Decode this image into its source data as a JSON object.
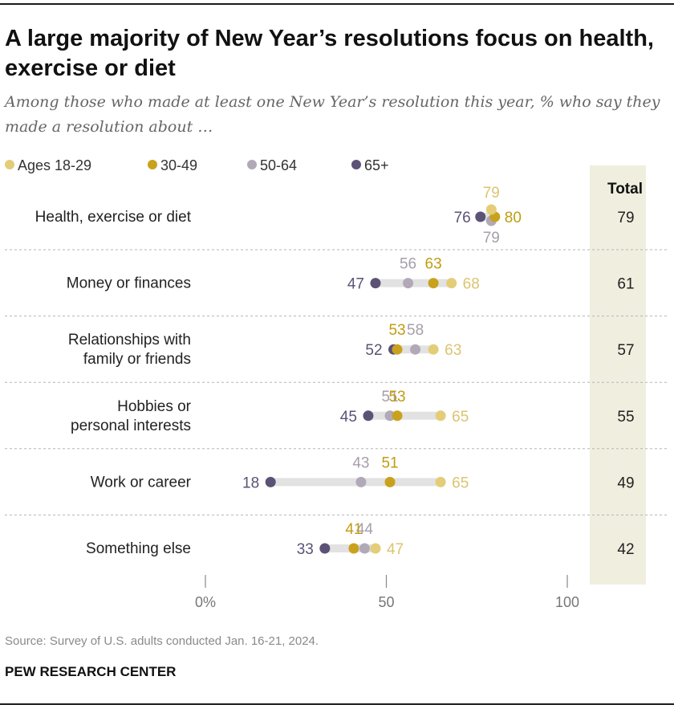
{
  "header": {
    "title": "A large majority of New Year’s resolutions focus on health, exercise or diet",
    "subtitle": "Among those who made at least one New Year’s resolution this year, % who say they made a resolution about …"
  },
  "legend": {
    "items": [
      {
        "label": "Ages 18-29",
        "color": "#e3cd78"
      },
      {
        "label": "30-49",
        "color": "#c9a21d"
      },
      {
        "label": "50-64",
        "color": "#b2a9b8"
      },
      {
        "label": "65+",
        "color": "#5c5275"
      }
    ]
  },
  "chart_data": {
    "type": "dot",
    "title": "A large majority of New Year’s resolutions focus on health, exercise or diet",
    "xlim": [
      0,
      100
    ],
    "x_ticks": [
      "0%",
      "50",
      "100"
    ],
    "total_header": "Total",
    "categories": [
      [
        "Health, exercise or diet"
      ],
      [
        "Money or finances"
      ],
      [
        "Relationships with",
        "family or friends"
      ],
      [
        "Hobbies or",
        "personal interests"
      ],
      [
        "Work or career"
      ],
      [
        "Something else"
      ]
    ],
    "series": [
      {
        "name": "Ages 18-29",
        "color": "#e3cd78",
        "label_color": "#dcc470",
        "values": [
          79,
          68,
          63,
          65,
          65,
          47
        ]
      },
      {
        "name": "30-49",
        "color": "#c9a21d",
        "label_color": "#c19c10",
        "values": [
          80,
          63,
          53,
          53,
          51,
          41
        ]
      },
      {
        "name": "50-64",
        "color": "#b2a9b8",
        "label_color": "#a69eac",
        "values": [
          79,
          56,
          58,
          51,
          43,
          44
        ]
      },
      {
        "name": "65+",
        "color": "#5c5275",
        "label_color": "#5c5275",
        "values": [
          76,
          47,
          52,
          45,
          18,
          33
        ]
      }
    ],
    "totals": [
      79,
      61,
      57,
      55,
      49,
      42
    ]
  },
  "footer": {
    "source": "Source: Survey of U.S. adults conducted Jan. 16-21, 2024.",
    "brand": "PEW RESEARCH CENTER"
  }
}
